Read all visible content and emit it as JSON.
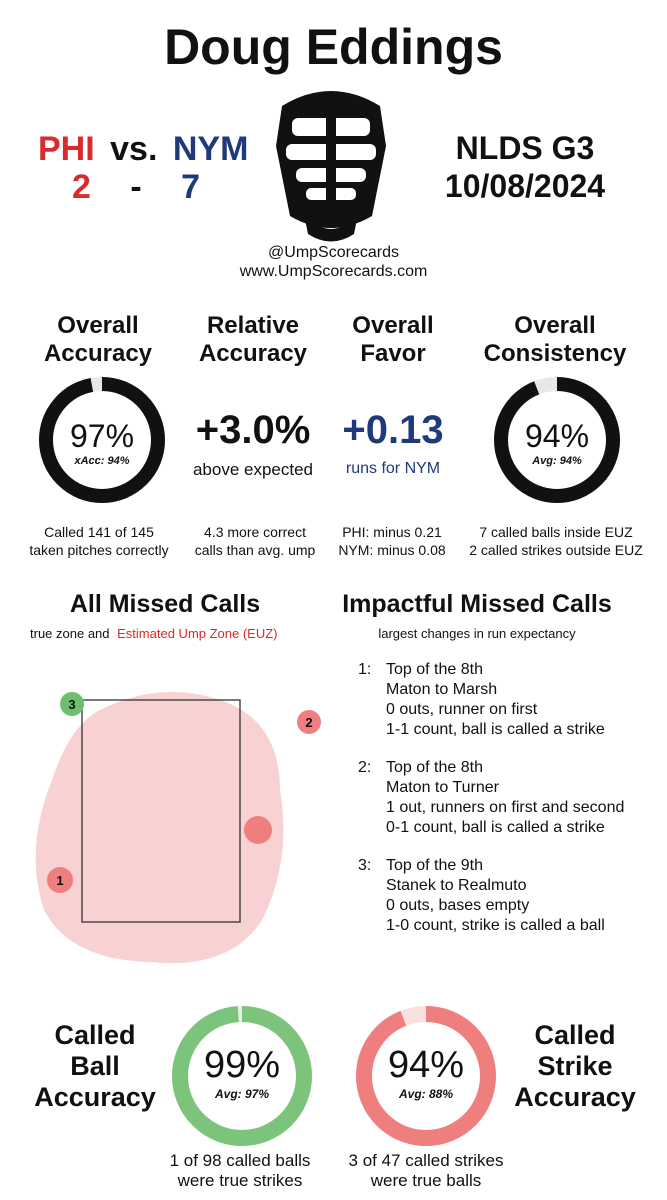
{
  "umpire": "Doug Eddings",
  "matchup": {
    "away": "PHI",
    "vs": "vs.",
    "home": "NYM",
    "away_score": "2",
    "dash": "-",
    "home_score": "7",
    "away_color": "#d92a2e",
    "home_color": "#1f3a7a"
  },
  "game": {
    "series": "NLDS  G3",
    "date": "10/08/2024"
  },
  "credits": {
    "handle": "@UmpScorecards",
    "site": "www.UmpScorecards.com"
  },
  "icon": "umpire-mask-icon",
  "stats": {
    "accuracy": {
      "title1": "Overall",
      "title2": "Accuracy",
      "value": "97%",
      "sub": "xAcc: 94%",
      "fraction": 0.97,
      "note1": "Called 141 of 145",
      "note2": "taken pitches correctly"
    },
    "relative": {
      "title1": "Relative",
      "title2": "Accuracy",
      "value": "+3.0%",
      "sub": "above expected",
      "note1": "4.3 more correct",
      "note2": "calls than avg. ump"
    },
    "favor": {
      "title1": "Overall",
      "title2": "Favor",
      "value": "+0.13",
      "sub": "runs for NYM",
      "note1": "PHI: minus 0.21",
      "note2": "NYM: minus 0.08"
    },
    "consistency": {
      "title1": "Overall",
      "title2": "Consistency",
      "value": "94%",
      "sub": "Avg: 94%",
      "fraction": 0.94,
      "note1": "7 called balls inside EUZ",
      "note2": "2 called strikes outside EUZ"
    }
  },
  "missed": {
    "title": "All Missed Calls",
    "legend_prefix": "true zone and",
    "legend_euz": "Estimated Ump Zone (EUZ)",
    "points": [
      {
        "label": "3",
        "color": "#6dbf6d"
      },
      {
        "label": "2",
        "color": "#ef7f7f"
      },
      {
        "label": "",
        "color": "#ef7f7f"
      },
      {
        "label": "1",
        "color": "#ef7f7f"
      }
    ]
  },
  "impactful": {
    "title": "Impactful Missed Calls",
    "subtitle": "largest changes in run expectancy",
    "calls": [
      {
        "num": "1:",
        "lines": [
          "Top of the 8th",
          "Maton to Marsh",
          "0 outs, runner on first",
          "1-1 count, ball is called a strike"
        ]
      },
      {
        "num": "2:",
        "lines": [
          "Top of the 8th",
          "Maton to Turner",
          "1 out, runners on first and second",
          "0-1 count, ball is called a strike"
        ]
      },
      {
        "num": "3:",
        "lines": [
          "Top of the 9th",
          "Stanek to Realmuto",
          "0 outs, bases empty",
          "1-0 count, strike is called a ball"
        ]
      }
    ]
  },
  "called_ball": {
    "title1": "Called",
    "title2": "Ball",
    "title3": "Accuracy",
    "value": "99%",
    "sub": "Avg: 97%",
    "fraction": 0.99,
    "color": "#7cc47c",
    "note1": "1 of 98 called balls",
    "note2": "were true strikes"
  },
  "called_strike": {
    "title1": "Called",
    "title2": "Strike",
    "title3": "Accuracy",
    "value": "94%",
    "sub": "Avg: 88%",
    "fraction": 0.94,
    "color": "#ef7f7f",
    "note1": "3 of 47 called strikes",
    "note2": "were true balls"
  }
}
